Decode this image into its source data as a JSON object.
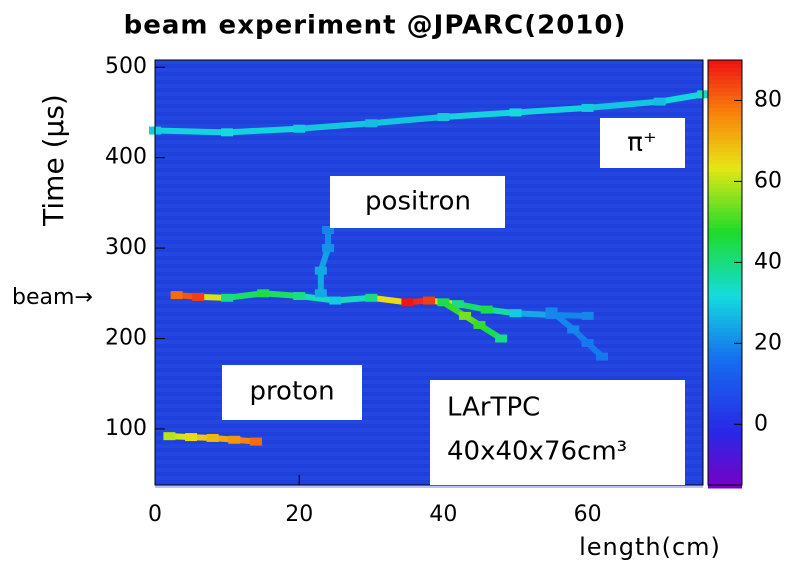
{
  "chart_data": {
    "type": "heatmap",
    "title": "beam experiment @JPARC(2010)",
    "x_label": "length(cm)",
    "y_label": "Time (μs)",
    "xlim": [
      0,
      76
    ],
    "xticks": [
      0,
      20,
      40,
      60
    ],
    "ylim": [
      38,
      508
    ],
    "yticks": [
      100,
      200,
      300,
      400,
      500
    ],
    "zlim": [
      -15,
      90
    ],
    "zticks": [
      0,
      20,
      40,
      60,
      80
    ],
    "annotations": [
      "π⁺",
      "positron",
      "proton",
      "LArTPC",
      "40x40x76cm³",
      "beam→"
    ],
    "tracks": [
      {
        "x": [
          0,
          10,
          20,
          30,
          40,
          50,
          60,
          70,
          76
        ],
        "y": [
          430,
          428,
          432,
          438,
          445,
          450,
          455,
          462,
          470
        ],
        "values": [
          30,
          32,
          30,
          28,
          30,
          32,
          30,
          28,
          35
        ]
      },
      {
        "x": [
          3,
          6,
          10,
          15,
          20,
          25,
          30,
          35,
          38,
          42,
          46,
          50,
          55,
          60
        ],
        "y": [
          248,
          246,
          245,
          250,
          247,
          242,
          245,
          240,
          242,
          238,
          232,
          228,
          226,
          225
        ],
        "values": [
          80,
          85,
          40,
          45,
          40,
          30,
          40,
          90,
          85,
          40,
          45,
          30,
          20,
          20
        ]
      },
      {
        "x": [
          2,
          5,
          8,
          11,
          14
        ],
        "y": [
          92,
          91,
          90,
          88,
          86
        ],
        "values": [
          60,
          65,
          70,
          75,
          80
        ]
      },
      {
        "x": [
          23,
          23,
          24,
          24
        ],
        "y": [
          250,
          275,
          300,
          320
        ],
        "values": [
          25,
          25,
          22,
          20
        ]
      },
      {
        "x": [
          40,
          43,
          45,
          48
        ],
        "y": [
          240,
          225,
          215,
          200
        ],
        "values": [
          45,
          55,
          50,
          40
        ]
      },
      {
        "x": [
          55,
          58,
          60,
          62
        ],
        "y": [
          230,
          210,
          195,
          180
        ],
        "values": [
          20,
          20,
          18,
          18
        ]
      }
    ]
  }
}
